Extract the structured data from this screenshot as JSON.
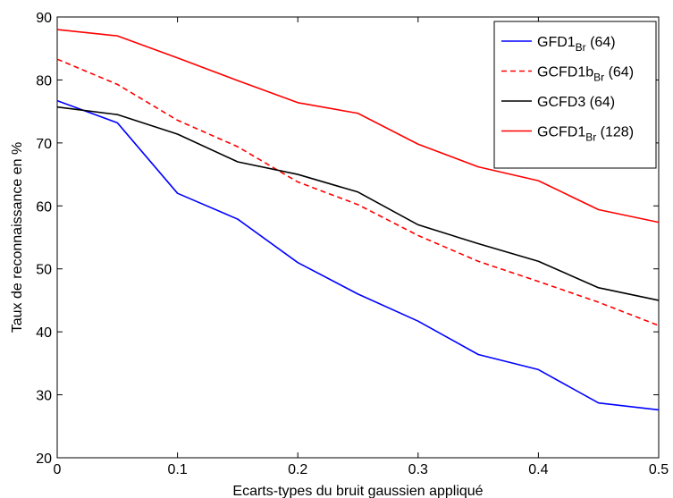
{
  "chart_data": {
    "type": "line",
    "xlabel": "Ecarts-types du bruit gaussien appliqué",
    "ylabel": "Taux de reconnaissance en %",
    "xlim": [
      0,
      0.5
    ],
    "ylim": [
      20,
      90
    ],
    "xticks": [
      0,
      0.1,
      0.2,
      0.3,
      0.4,
      0.5
    ],
    "xtick_labels": [
      "0",
      "0.1",
      "0.2",
      "0.3",
      "0.4",
      "0.5"
    ],
    "yticks": [
      20,
      30,
      40,
      50,
      60,
      70,
      80,
      90
    ],
    "ytick_labels": [
      "20",
      "30",
      "40",
      "50",
      "60",
      "70",
      "80",
      "90"
    ],
    "grid": false,
    "legend_position": "top-right",
    "x": [
      0,
      0.05,
      0.1,
      0.15,
      0.2,
      0.25,
      0.3,
      0.35,
      0.4,
      0.45,
      0.5
    ],
    "series": [
      {
        "name": "GFD1",
        "name_sub": "Br",
        "name_suffix": " (64)",
        "color": "#0000ff",
        "dash": "solid",
        "values": [
          76.7,
          73.2,
          62.0,
          57.9,
          51.0,
          46.0,
          41.7,
          36.4,
          34.0,
          28.7,
          27.6
        ]
      },
      {
        "name": "GCFD1b",
        "name_sub": "Br",
        "name_suffix": " (64)",
        "color": "#ff0000",
        "dash": "dashed",
        "values": [
          83.3,
          79.3,
          73.6,
          69.4,
          63.8,
          60.2,
          55.3,
          51.2,
          48.0,
          44.7,
          41.0
        ]
      },
      {
        "name": "GCFD3",
        "name_sub": "",
        "name_suffix": " (64)",
        "color": "#000000",
        "dash": "solid",
        "values": [
          75.7,
          74.5,
          71.4,
          67.0,
          65.0,
          62.2,
          57.0,
          54.0,
          51.2,
          47.0,
          45.0
        ]
      },
      {
        "name": "GCFD1",
        "name_sub": "Br",
        "name_suffix": " (128)",
        "color": "#ff0000",
        "dash": "solid",
        "values": [
          88.0,
          87.0,
          83.5,
          79.9,
          76.4,
          74.7,
          69.8,
          66.2,
          64.0,
          59.4,
          57.4
        ]
      }
    ]
  }
}
